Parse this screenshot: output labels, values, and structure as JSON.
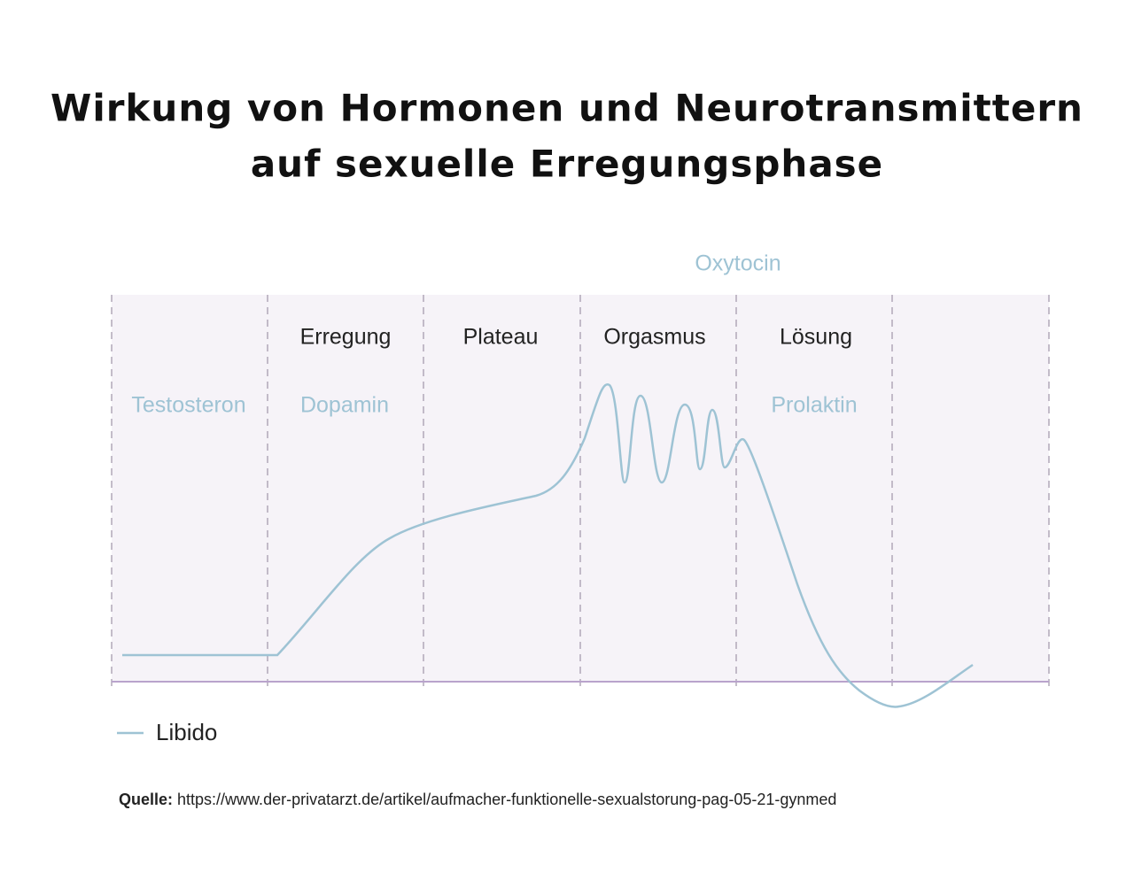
{
  "title": {
    "lines": [
      "Wirkung von Hormonen und Neurotransmittern",
      "auf sexuelle Erregungsphase"
    ]
  },
  "phases": [
    "Erregung",
    "Plateau",
    "Orgasmus",
    "Lösung"
  ],
  "hormones": [
    "Testosteron",
    "Dopamin",
    "Oxytocin",
    "Prolaktin"
  ],
  "legend": {
    "label": "Libido"
  },
  "source": {
    "label": "Quelle:",
    "url": "https://www.der-privatarzt.de/artikel/aufmacher-funktionelle-sexualstorung-pag-05-21-gynmed"
  }
}
